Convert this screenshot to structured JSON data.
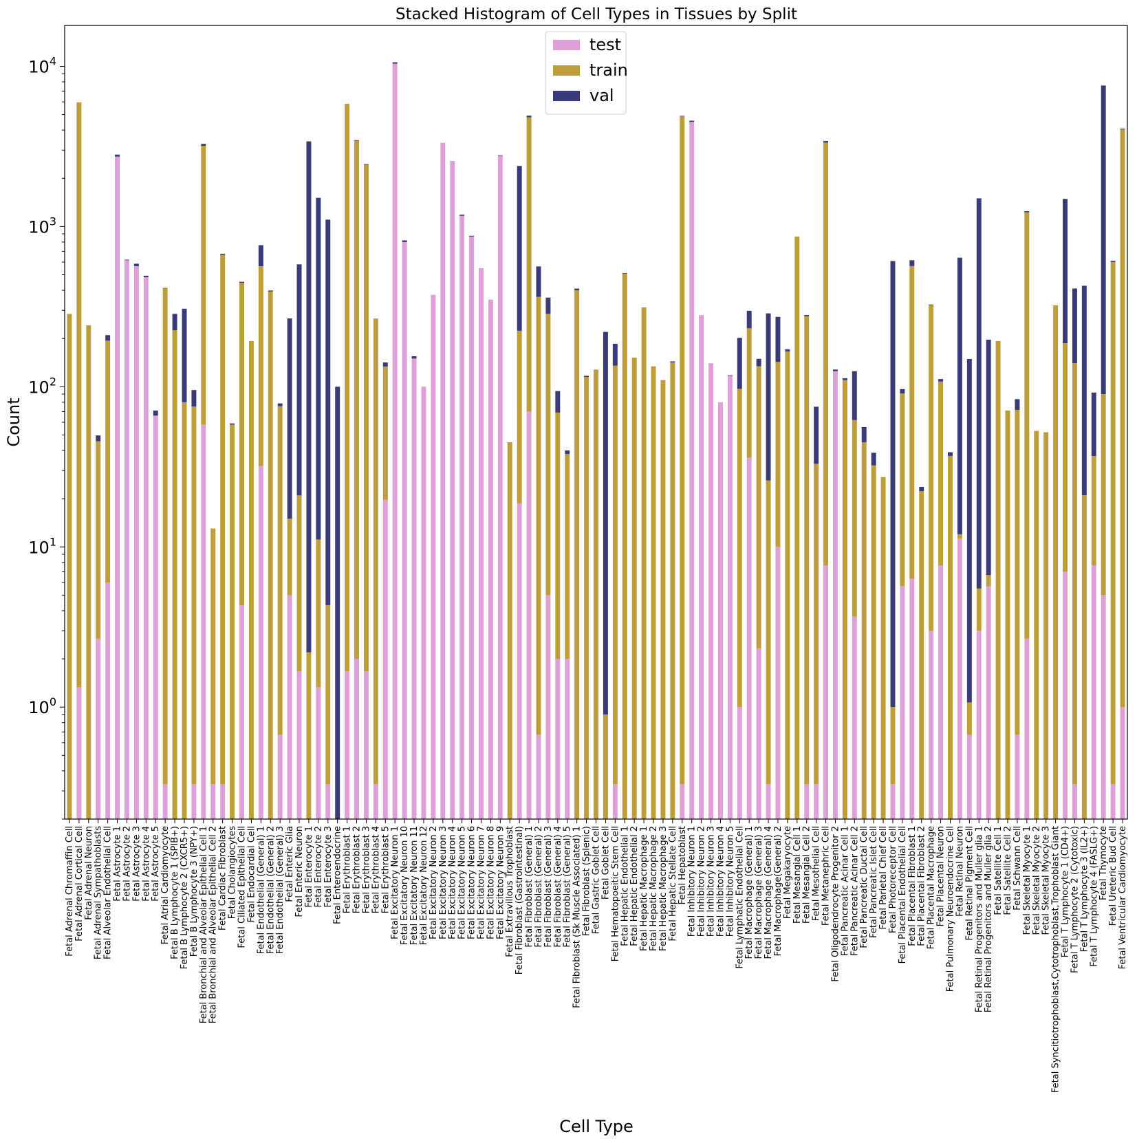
{
  "chart_data": {
    "type": "bar",
    "stacked": true,
    "title": "Stacked Histogram of Cell Types in Tissues by Split",
    "xlabel": "Cell Type",
    "ylabel": "Count",
    "yscale": "log",
    "ylim": [
      0.2,
      18000
    ],
    "yticks": [
      1,
      10,
      100,
      1000,
      10000
    ],
    "ytick_labels": [
      {
        "base": "10",
        "exp": "0"
      },
      {
        "base": "10",
        "exp": "1"
      },
      {
        "base": "10",
        "exp": "2"
      },
      {
        "base": "10",
        "exp": "3"
      },
      {
        "base": "10",
        "exp": "4"
      }
    ],
    "grid": false,
    "legend_position": "top-center",
    "colors": {
      "test": "#dea0d6",
      "train": "#bd9e39",
      "val": "#393b79"
    },
    "categories": [
      "Fetal Adrenal Chromaffin Cell",
      "Fetal Adrenal Cortical Cell",
      "Fetal Adrenal Neuron",
      "Fetal Adrenal Sympathoblasts",
      "Fetal Alveolar Endothelial Cell",
      "Fetal Astrocyte 1",
      "Fetal Astrocyte 2",
      "Fetal Astrocyte 3",
      "Fetal Astrocyte 4",
      "Fetal Astrocyte 5",
      "Fetal Atrial Cardiomyocyte",
      "Fetal B Lymphocyte 1 (SPIB+)",
      "Fetal B Lymphocyte 2 (CXCR5+)",
      "Fetal B Lymphocyte 3 (NPY+)",
      "Fetal Bronchial and Alveolar Epithelial Cell 1",
      "Fetal Bronchial and Alveolar Epithelial Cell 2",
      "Fetal Cardiac Fibroblast",
      "Fetal Cholangiocytes",
      "Fetal Ciliated Epithelial Cell",
      "Fetal Endocardial Cell",
      "Fetal Endothelial (General) 1",
      "Fetal Endothelial (General) 2",
      "Fetal Endothelial (General) 3",
      "Fetal Enteric Glia",
      "Fetal Enteric Neuron",
      "Fetal Enterocyte 1",
      "Fetal Enterocyte 2",
      "Fetal Enterocyte 3",
      "Fetal Enteroendocrine",
      "Fetal Erythroblast 1",
      "Fetal Erythroblast 2",
      "Fetal Erythroblast 3",
      "Fetal Erythroblast 4",
      "Fetal Erythroblast 5",
      "Fetal Excitatory Neuron 1",
      "Fetal Excitatory Neuron 10",
      "Fetal Excitatory Neuron 11",
      "Fetal Excitatory Neuron 12",
      "Fetal Excitatory Neuron 2",
      "Fetal Excitatory Neuron 3",
      "Fetal Excitatory Neuron 4",
      "Fetal Excitatory Neuron 5",
      "Fetal Excitatory Neuron 6",
      "Fetal Excitatory Neuron 7",
      "Fetal Excitatory Neuron 8",
      "Fetal Excitatory Neuron 9",
      "Fetal Extravillous Trophoblast",
      "Fetal Fibroblast (Gastrointestinal)",
      "Fetal Fibroblast (General) 1",
      "Fetal Fibroblast (General) 2",
      "Fetal Fibroblast (General) 3",
      "Fetal Fibroblast (General) 4",
      "Fetal Fibroblast (General) 5",
      "Fetal Fibroblast (Sk Muscle Associated) 1",
      "Fetal Fibroblast (Splenic)",
      "Fetal Gastric Goblet Cell",
      "Fetal Goblet Cell",
      "Fetal Hematopoeitic Stem Cell",
      "Fetal Hepatic Endothelial 1",
      "Fetal Hepatic Endothelial 2",
      "Fetal Hepatic Macrophage 1",
      "Fetal Hepatic Macrophage 2",
      "Fetal Hepatic Macrophage 3",
      "Fetal Hepatic Stellate Cell",
      "Fetal Hepatoblast",
      "Fetal Inhibitory Neuron 1",
      "Fetal Inhibitory Neuron 2",
      "Fetal Inhibitory Neuron 3",
      "Fetal Inhibitory Neuron 4",
      "Fetal Inhibitory Neuron 5",
      "Fetal Lymphatic Endothelial Cell",
      "Fetal Macrophage (General) 1",
      "Fetal Macrophage (General) 3",
      "Fetal Macrophage (General) 4",
      "Fetal Macrophage(General) 2",
      "Fetal Megakaryocyte",
      "Fetal Mesangial Cell 1",
      "Fetal Mesangial Cell 2",
      "Fetal Mesothelial Cell",
      "Fetal Metanephric Cell",
      "Fetal Oligodendrocyte Progenitor 2",
      "Fetal Pancreatic Acinar Cell 1",
      "Fetal Pancreatic Acinar Cell 2",
      "Fetal Pancreatic Ductal Cell",
      "Fetal Pancreatic Islet Cell",
      "Fetal Parietal Chief Cell",
      "Fetal Photoreceptor Cell",
      "Fetal Placental Endothelial Cell",
      "Fetal Placental Fibroblast 1",
      "Fetal Placental Fibroblast 2",
      "Fetal Placental Macrophage",
      "Fetal Placental Neuron",
      "Fetal Pulmonary Neuroendocrine Cell",
      "Fetal Retinal Neuron",
      "Fetal Retinal Pigment Cell",
      "Fetal Retinal Progenitors and Muller glia 1",
      "Fetal Retinal Progenitors and Muller glia 2",
      "Fetal Satellite Cell 1",
      "Fetal Satellite Cell 2",
      "Fetal Schwann Cell",
      "Fetal Skeletal Myocyte 1",
      "Fetal Skeletal Myocyte 2",
      "Fetal Skeletal Myocyte 3",
      "Fetal Syncitiotrophoblast,Cytotrophoblast,Trophoblast Giant",
      "Fetal T Lymphocyte 1 (CD4+)",
      "Fetal T Lymphocyte 2 (Cytotoxic)",
      "Fetal T Lymphocyte 3 (IL2+)",
      "Fetal T Lymphocyte 4 (FASLG+)",
      "Fetal Thymocyte",
      "Fetal Ureteric Bud Cell",
      "Fetal Ventricular Cardiomyocyte"
    ],
    "series": [
      {
        "name": "test",
        "values": [
          0,
          1.33,
          0,
          2.67,
          6,
          2733,
          616,
          566,
          483,
          66,
          0.33,
          0,
          0,
          0.33,
          58,
          0.33,
          0.33,
          0,
          4.33,
          0,
          32,
          0,
          0.67,
          5,
          1.67,
          0,
          1.33,
          0.33,
          0,
          1.67,
          2,
          1.67,
          0.33,
          19.7,
          10400,
          800,
          150,
          100,
          375,
          3333,
          2566,
          1166,
          866,
          550,
          350,
          2766,
          0,
          18.7,
          70,
          0.67,
          5,
          2,
          2,
          0,
          0,
          0,
          0,
          0.33,
          0,
          0,
          0,
          0,
          0,
          0,
          0.33,
          4500,
          280,
          140,
          80,
          117,
          1,
          36,
          2.33,
          0.33,
          10,
          0,
          0,
          0.33,
          0.33,
          7.67,
          125,
          0,
          3.67,
          0,
          0,
          0,
          0.33,
          5.67,
          6.33,
          0,
          3,
          7.67,
          0,
          11.3,
          0.67,
          3,
          5.67,
          0,
          0,
          0.67,
          2.67,
          0,
          0,
          0,
          7,
          0.33,
          0,
          7.67,
          5,
          0.33,
          1
        ]
      },
      {
        "name": "train",
        "values": [
          285,
          5960,
          242,
          43,
          188,
          0,
          0,
          0,
          0,
          0,
          415,
          225,
          80,
          75,
          3133,
          12.7,
          666,
          58,
          440,
          193,
          533,
          393,
          75,
          10,
          19.3,
          2.2,
          9.8,
          4,
          0,
          5833,
          3430,
          2430,
          266,
          114,
          0,
          0,
          0,
          0,
          0,
          0,
          0,
          0,
          0,
          0,
          0,
          0,
          45,
          205,
          4733,
          363,
          280,
          67,
          36,
          400,
          115,
          128,
          0.9,
          135,
          508,
          152,
          313,
          134,
          110,
          142,
          4866,
          0,
          0,
          0,
          0,
          0,
          96,
          196,
          132,
          25.7,
          133,
          166,
          866,
          275,
          32.7,
          3333,
          0,
          110,
          58.3,
          45,
          32.3,
          27.3,
          0.67,
          85,
          560,
          22.3,
          320,
          100,
          37,
          0.7,
          0.4,
          2.5,
          1,
          193,
          71,
          71,
          1225,
          53,
          52,
          322,
          180,
          140,
          21,
          29.3,
          85,
          600,
          4033
        ]
      },
      {
        "name": "val",
        "values": [
          0,
          0,
          0,
          4,
          16,
          80,
          5,
          20,
          10,
          5,
          0,
          60,
          227,
          20,
          90,
          0,
          10,
          1,
          8,
          0,
          200,
          6,
          3,
          252,
          560,
          3400,
          1500,
          1100,
          100,
          0,
          30,
          20,
          0,
          8,
          200,
          20,
          5,
          0,
          0,
          0,
          0,
          20,
          10,
          0,
          0,
          20,
          0,
          2166,
          120,
          200,
          75,
          25,
          2,
          10,
          2,
          0,
          219,
          50,
          5,
          0,
          0,
          0,
          0,
          2,
          40,
          80,
          0,
          0,
          0,
          1,
          105,
          66,
          15,
          261,
          130,
          5,
          0,
          5,
          42,
          80,
          3,
          3,
          63,
          11,
          6.4,
          0,
          608,
          6,
          50,
          1.4,
          3,
          4,
          2,
          627,
          148,
          1494,
          190,
          0,
          0,
          12,
          20,
          0,
          0,
          0,
          1300,
          270,
          406,
          55,
          7500,
          10,
          50
        ]
      }
    ]
  }
}
